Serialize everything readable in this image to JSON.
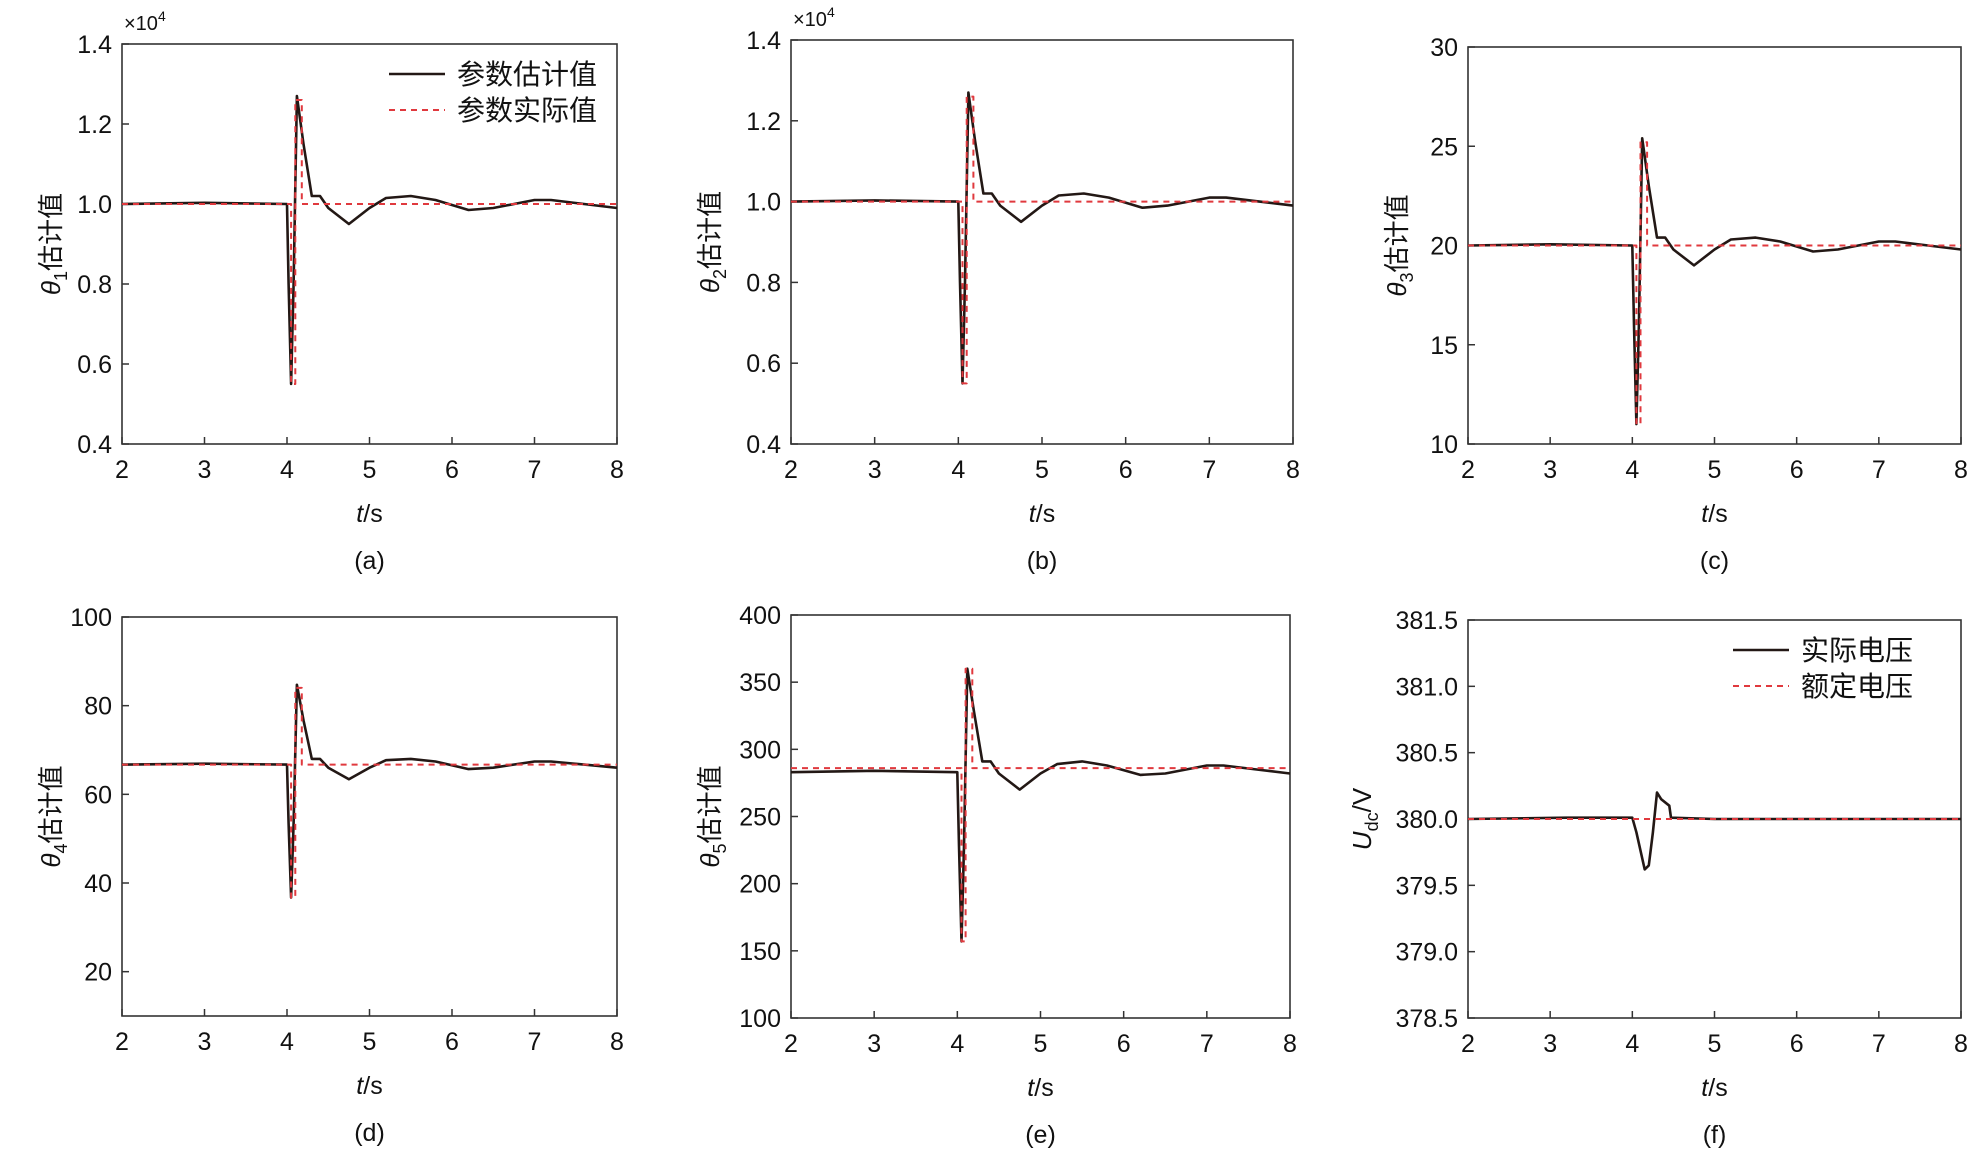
{
  "chart_data": [
    {
      "id": "a",
      "type": "line",
      "panel_label": "(a)",
      "xlabel_italic": "t",
      "xlabel_unit": "/s",
      "ylabel_symbol": "θ",
      "ylabel_sub": "1",
      "ylabel_text": "估计值",
      "multiplier": "×10",
      "multiplier_exp": "4",
      "xlim": [
        2,
        8
      ],
      "ylim": [
        0.4,
        1.4
      ],
      "xticks": [
        2,
        3,
        4,
        5,
        6,
        7,
        8
      ],
      "yticks": [
        "0.4",
        "0.6",
        "0.8",
        "1.0",
        "1.2",
        "1.4"
      ],
      "legend": [
        "参数估计值",
        "参数实际值"
      ],
      "legend_position": "top-right",
      "series": [
        {
          "name": "参数估计值",
          "style": "solid",
          "color": "#231815",
          "x": [
            2,
            3,
            4,
            4.02,
            4.05,
            4.08,
            4.12,
            4.2,
            4.3,
            4.4,
            4.5,
            4.75,
            5,
            5.2,
            5.5,
            5.8,
            6.2,
            6.5,
            7,
            7.2,
            7.6,
            8
          ],
          "y": [
            1.0,
            1.003,
            1.0,
            0.8,
            0.55,
            0.8,
            1.27,
            1.15,
            1.02,
            1.02,
            0.99,
            0.95,
            0.99,
            1.015,
            1.02,
            1.01,
            0.985,
            0.99,
            1.01,
            1.01,
            1.0,
            0.99
          ]
        },
        {
          "name": "参数实际值",
          "style": "dashed",
          "color": "#e0393e",
          "x": [
            2,
            4.05,
            4.05,
            4.1,
            4.1,
            4.18,
            4.18,
            8
          ],
          "y": [
            1,
            1,
            0.55,
            0.55,
            1.26,
            1.26,
            1,
            1
          ]
        }
      ]
    },
    {
      "id": "b",
      "type": "line",
      "panel_label": "(b)",
      "xlabel_italic": "t",
      "xlabel_unit": "/s",
      "ylabel_symbol": "θ",
      "ylabel_sub": "2",
      "ylabel_text": "估计值",
      "multiplier": "×10",
      "multiplier_exp": "4",
      "xlim": [
        2,
        8
      ],
      "ylim": [
        0.4,
        1.4
      ],
      "xticks": [
        2,
        3,
        4,
        5,
        6,
        7,
        8
      ],
      "yticks": [
        "0.4",
        "0.6",
        "0.8",
        "1.0",
        "1.2",
        "1.4"
      ],
      "series": [
        {
          "style": "solid",
          "color": "#231815",
          "x": [
            2,
            3,
            4,
            4.02,
            4.05,
            4.08,
            4.12,
            4.2,
            4.3,
            4.4,
            4.5,
            4.75,
            5,
            5.2,
            5.5,
            5.8,
            6.2,
            6.5,
            7,
            7.2,
            7.6,
            8
          ],
          "y": [
            1.0,
            1.003,
            1.0,
            0.8,
            0.55,
            0.8,
            1.27,
            1.15,
            1.02,
            1.02,
            0.99,
            0.95,
            0.99,
            1.015,
            1.02,
            1.01,
            0.985,
            0.99,
            1.01,
            1.01,
            1.0,
            0.99
          ]
        },
        {
          "style": "dashed",
          "color": "#e0393e",
          "x": [
            2,
            4.05,
            4.05,
            4.1,
            4.1,
            4.18,
            4.18,
            8
          ],
          "y": [
            1,
            1,
            0.55,
            0.55,
            1.26,
            1.26,
            1,
            1
          ]
        }
      ]
    },
    {
      "id": "c",
      "type": "line",
      "panel_label": "(c)",
      "xlabel_italic": "t",
      "xlabel_unit": "/s",
      "ylabel_symbol": "θ",
      "ylabel_sub": "3",
      "ylabel_text": "估计值",
      "xlim": [
        2,
        8
      ],
      "ylim": [
        10,
        30
      ],
      "xticks": [
        2,
        3,
        4,
        5,
        6,
        7,
        8
      ],
      "yticks": [
        "10",
        "15",
        "20",
        "25",
        "30"
      ],
      "series": [
        {
          "style": "solid",
          "color": "#231815",
          "x": [
            2,
            3,
            4,
            4.02,
            4.05,
            4.08,
            4.12,
            4.2,
            4.3,
            4.4,
            4.5,
            4.75,
            5,
            5.2,
            5.5,
            5.8,
            6.2,
            6.5,
            7,
            7.2,
            7.6,
            8
          ],
          "y": [
            20,
            20.06,
            20,
            16,
            11,
            16,
            25.4,
            23,
            20.4,
            20.4,
            19.8,
            19,
            19.8,
            20.3,
            20.4,
            20.2,
            19.7,
            19.8,
            20.2,
            20.2,
            20,
            19.8
          ]
        },
        {
          "style": "dashed",
          "color": "#e0393e",
          "x": [
            2,
            4.05,
            4.05,
            4.1,
            4.1,
            4.18,
            4.18,
            8
          ],
          "y": [
            20,
            20,
            11,
            11,
            25.2,
            25.2,
            20,
            20
          ]
        }
      ]
    },
    {
      "id": "d",
      "type": "line",
      "panel_label": "(d)",
      "xlabel_italic": "t",
      "xlabel_unit": "/s",
      "ylabel_symbol": "θ",
      "ylabel_sub": "4",
      "ylabel_text": "估计值",
      "xlim": [
        2,
        8
      ],
      "ylim": [
        10,
        100
      ],
      "xticks": [
        2,
        3,
        4,
        5,
        6,
        7,
        8
      ],
      "yticks": [
        "20",
        "40",
        "60",
        "80",
        "100"
      ],
      "series": [
        {
          "style": "solid",
          "color": "#231815",
          "x": [
            2,
            3,
            4,
            4.02,
            4.05,
            4.08,
            4.12,
            4.2,
            4.3,
            4.4,
            4.5,
            4.75,
            5,
            5.2,
            5.5,
            5.8,
            6.2,
            6.5,
            7,
            7.2,
            7.6,
            8
          ],
          "y": [
            66.7,
            66.9,
            66.7,
            53.4,
            36.7,
            53.4,
            84.7,
            76.7,
            68,
            68,
            66,
            63.4,
            66,
            67.7,
            68,
            67.4,
            65.7,
            66,
            67.4,
            67.4,
            66.7,
            66
          ]
        },
        {
          "style": "dashed",
          "color": "#e0393e",
          "x": [
            2,
            4.05,
            4.05,
            4.1,
            4.1,
            4.18,
            4.18,
            8
          ],
          "y": [
            66.7,
            66.7,
            36.7,
            36.7,
            84,
            84,
            66.7,
            66.7
          ]
        }
      ]
    },
    {
      "id": "e",
      "type": "line",
      "panel_label": "(e)",
      "xlabel_italic": "t",
      "xlabel_unit": "/s",
      "ylabel_symbol": "θ",
      "ylabel_sub": "5",
      "ylabel_text": "估计值",
      "xlim": [
        2,
        8
      ],
      "ylim": [
        100,
        400
      ],
      "xticks": [
        2,
        3,
        4,
        5,
        6,
        7,
        8
      ],
      "yticks": [
        "100",
        "150",
        "200",
        "250",
        "300",
        "350",
        "400"
      ],
      "series": [
        {
          "style": "solid",
          "color": "#231815",
          "x": [
            2,
            3,
            4,
            4.02,
            4.05,
            4.08,
            4.12,
            4.2,
            4.3,
            4.4,
            4.5,
            4.75,
            5,
            5.2,
            5.5,
            5.8,
            6.2,
            6.5,
            7,
            7.2,
            7.6,
            8
          ],
          "y": [
            283,
            284,
            283,
            228,
            157,
            228,
            360,
            328,
            291,
            291,
            282,
            270,
            282,
            289,
            291,
            288,
            281,
            282,
            288,
            288,
            285,
            282
          ]
        },
        {
          "style": "dashed",
          "color": "#e0393e",
          "x": [
            2,
            4.05,
            4.05,
            4.1,
            4.1,
            4.18,
            4.18,
            8
          ],
          "y": [
            286,
            286,
            157,
            157,
            360,
            360,
            286,
            286
          ]
        }
      ]
    },
    {
      "id": "f",
      "type": "line",
      "panel_label": "(f)",
      "xlabel_italic": "t",
      "xlabel_unit": "/s",
      "ylabel_symbol": "U",
      "ylabel_sub": "dc",
      "ylabel_text": "/V",
      "xlim": [
        2,
        8
      ],
      "ylim": [
        378.5,
        381.5
      ],
      "xticks": [
        2,
        3,
        4,
        5,
        6,
        7,
        8
      ],
      "yticks": [
        "378.5",
        "379.0",
        "379.5",
        "380.0",
        "380.5",
        "381.0",
        "381.5"
      ],
      "legend": [
        "实际电压",
        "额定电压"
      ],
      "legend_position": "top-right",
      "series": [
        {
          "name": "实际电压",
          "style": "solid",
          "color": "#231815",
          "x": [
            2,
            3.2,
            3.6,
            4.0,
            4.05,
            4.15,
            4.2,
            4.25,
            4.3,
            4.35,
            4.45,
            4.47,
            5,
            8
          ],
          "y": [
            380,
            380.01,
            380.01,
            380.01,
            379.9,
            379.62,
            379.65,
            379.9,
            380.2,
            380.15,
            380.1,
            380.01,
            380,
            380
          ]
        },
        {
          "name": "额定电压",
          "style": "dashed",
          "color": "#e0393e",
          "x": [
            2,
            8
          ],
          "y": [
            380,
            380
          ]
        }
      ]
    }
  ]
}
